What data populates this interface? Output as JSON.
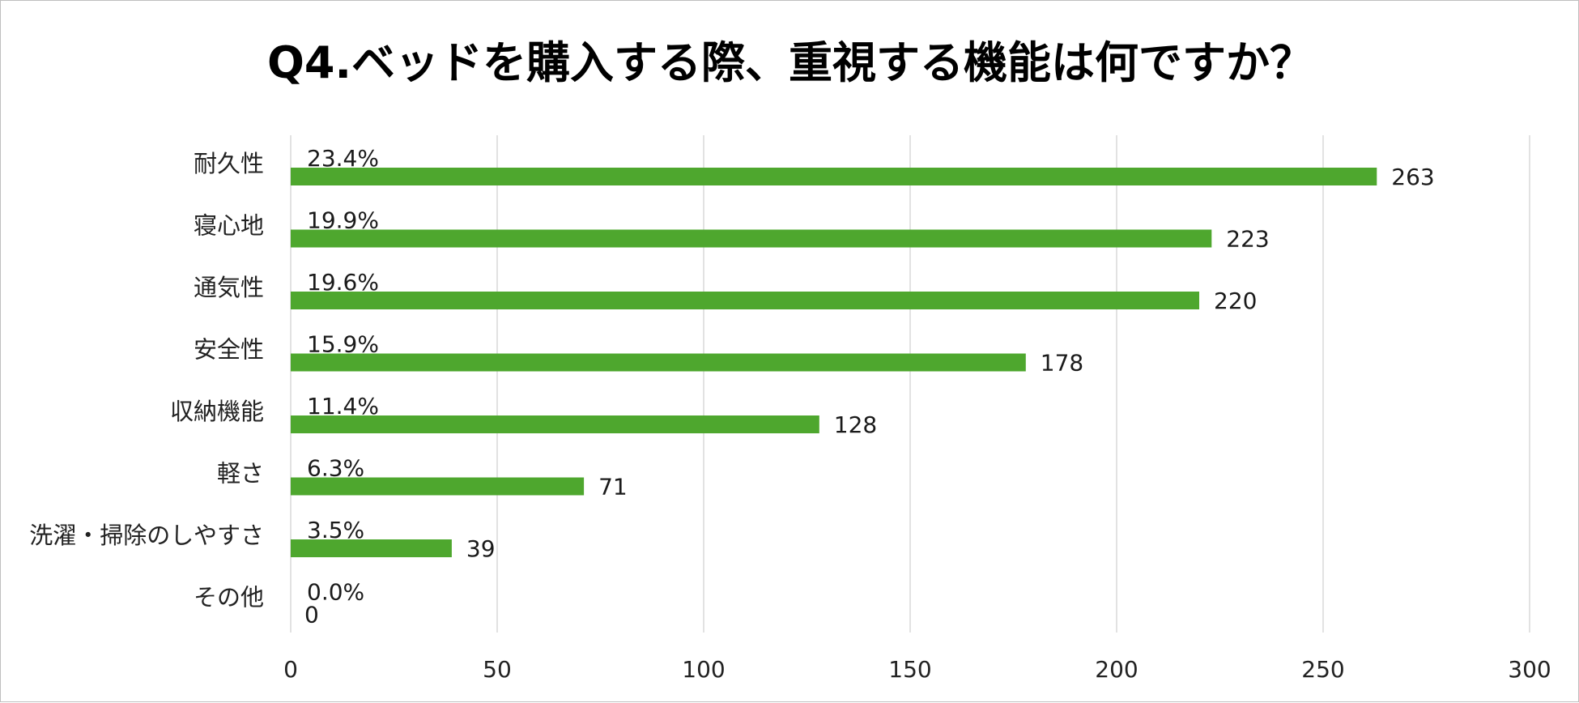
{
  "chart_data": {
    "type": "bar",
    "orientation": "horizontal",
    "title": "Q4.ベッドを購入する際、重視する機能は何ですか？",
    "categories": [
      "耐久性",
      "寝心地",
      "通気性",
      "安全性",
      "収納機能",
      "軽さ",
      "洗濯・掃除のしやすさ",
      "その他"
    ],
    "values": [
      263,
      223,
      220,
      178,
      128,
      71,
      39,
      0
    ],
    "percent_labels": [
      "23.4%",
      "19.9%",
      "19.6%",
      "15.9%",
      "11.4%",
      "6.3%",
      "3.5%",
      "0.0%"
    ],
    "value_labels": [
      "263",
      "223",
      "220",
      "178",
      "128",
      "71",
      "39",
      "0"
    ],
    "xlim": [
      0,
      300
    ],
    "xticks": [
      "0",
      "50",
      "100",
      "150",
      "200",
      "250",
      "300"
    ],
    "grid": true,
    "legend": "none",
    "bar_color": "#4ea72e",
    "grid_color": "#d9d9d9"
  }
}
